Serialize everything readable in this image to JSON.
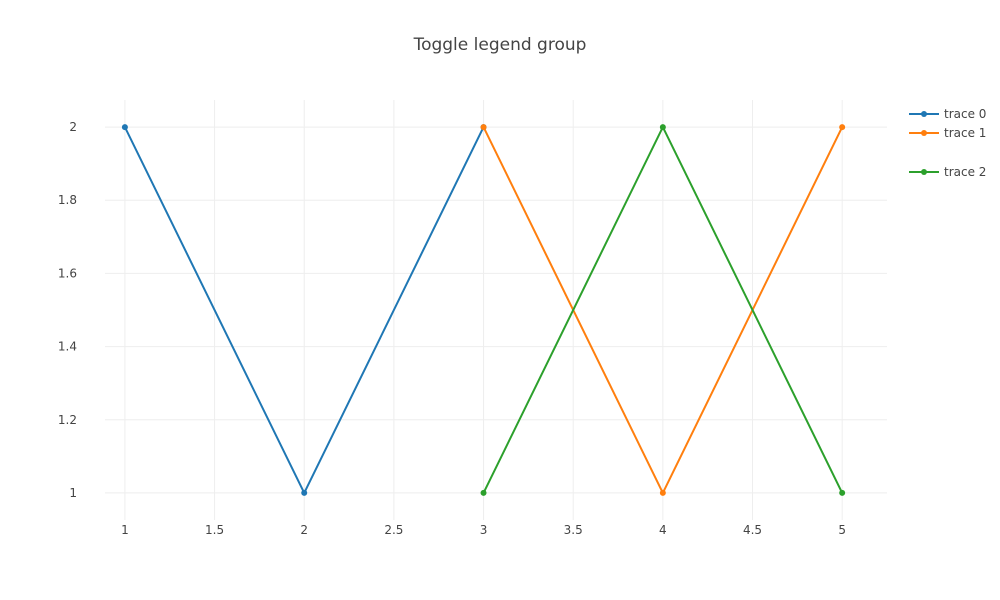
{
  "chart_data": {
    "type": "line",
    "title": "Toggle legend group",
    "xlabel": "",
    "ylabel": "",
    "xlim": [
      0.889,
      5.25
    ],
    "ylim": [
      0.926,
      2.074
    ],
    "xticks": [
      1,
      1.5,
      2,
      2.5,
      3,
      3.5,
      4,
      4.5,
      5
    ],
    "yticks": [
      1,
      1.2,
      1.4,
      1.6,
      1.8,
      2
    ],
    "xtick_labels": [
      "1",
      "1.5",
      "2",
      "2.5",
      "3",
      "3.5",
      "4",
      "4.5",
      "5"
    ],
    "ytick_labels": [
      "1",
      "1.2",
      "1.4",
      "1.6",
      "1.8",
      "2"
    ],
    "grid": true,
    "legend_position": "top-right",
    "series": [
      {
        "name": "trace 0",
        "color": "#1f77b4",
        "x": [
          1,
          2,
          3
        ],
        "y": [
          2,
          1,
          2
        ],
        "legend_group_gap_after": false
      },
      {
        "name": "trace 1",
        "color": "#ff7f0e",
        "x": [
          3,
          4,
          5
        ],
        "y": [
          2,
          1,
          2
        ],
        "legend_group_gap_after": true
      },
      {
        "name": "trace 2",
        "color": "#2ca02c",
        "x": [
          3,
          4,
          5
        ],
        "y": [
          1,
          2,
          1
        ],
        "legend_group_gap_after": false
      }
    ]
  }
}
